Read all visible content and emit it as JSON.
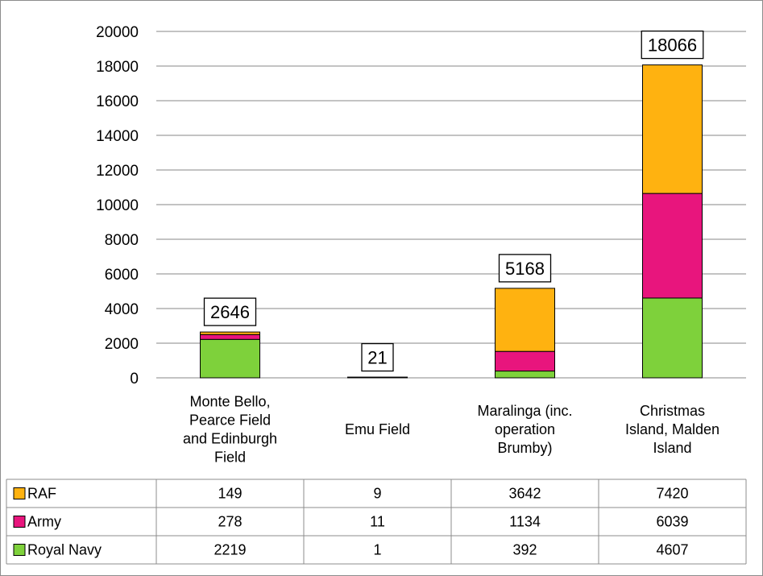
{
  "chart_data": {
    "type": "bar",
    "stacked": true,
    "title": "",
    "xlabel": "",
    "ylabel": "",
    "ylim": [
      0,
      20000
    ],
    "yticks": [
      0,
      2000,
      4000,
      6000,
      8000,
      10000,
      12000,
      14000,
      16000,
      18000,
      20000
    ],
    "grid": true,
    "legend": "data-table",
    "categories": [
      [
        "Monte Bello,",
        "Pearce Field",
        "and Edinburgh",
        "Field"
      ],
      [
        "Emu Field"
      ],
      [
        "Maralinga (inc.",
        "operation",
        "Brumby)"
      ],
      [
        "Christmas",
        "Island, Malden",
        "Island"
      ]
    ],
    "series": [
      {
        "name": "Royal Navy",
        "color": "#7ed13b",
        "values": [
          2219,
          1,
          392,
          4607
        ]
      },
      {
        "name": "Army",
        "color": "#e8157d",
        "values": [
          278,
          11,
          1134,
          6039
        ]
      },
      {
        "name": "RAF",
        "color": "#ffb210",
        "values": [
          149,
          9,
          3642,
          7420
        ]
      }
    ],
    "totals": [
      2646,
      21,
      5168,
      18066
    ],
    "table_order": [
      "RAF",
      "Army",
      "Royal Navy"
    ]
  }
}
